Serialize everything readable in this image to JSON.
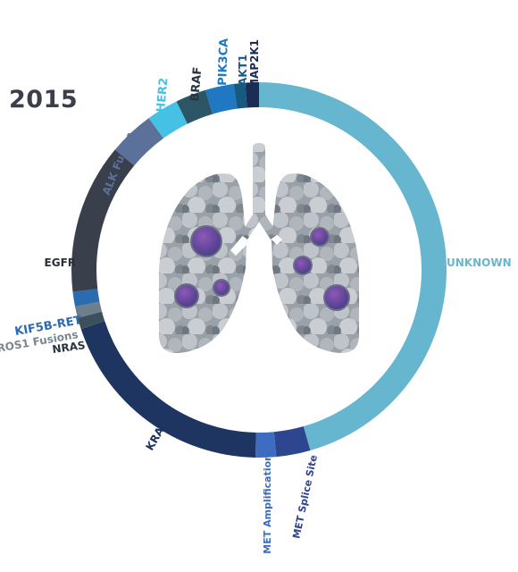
{
  "chart_data": {
    "type": "pie",
    "title": "2015",
    "segments": [
      {
        "name": "UNKNOWN",
        "value": 46.5,
        "color": "#66b6cf",
        "label_color": "#66b6cf"
      },
      {
        "name": "MET Splice Site",
        "value": 3.0,
        "color": "#2e4690",
        "label_color": "#2e4690"
      },
      {
        "name": "MET Amplification",
        "value": 1.8,
        "color": "#3d6cc0",
        "label_color": "#3d6cc0"
      },
      {
        "name": "KRAS",
        "value": 20.0,
        "color": "#1e3461",
        "label_color": "#1e3461"
      },
      {
        "name": "NRAS",
        "value": 1.0,
        "color": "#3c4f5c",
        "label_color": "#2a3440"
      },
      {
        "name": "ROS1 Fusions",
        "value": 1.0,
        "color": "#6e7f8c",
        "label_color": "#7a8590"
      },
      {
        "name": "KIF5B-RET",
        "value": 1.3,
        "color": "#2b6cb0",
        "label_color": "#2b6cb0"
      },
      {
        "name": "EGFR",
        "value": 13.2,
        "color": "#3a3f4c",
        "label_color": "#2a2e36"
      },
      {
        "name": "ALK Fusion",
        "value": 4.0,
        "color": "#5c719a",
        "label_color": "#5c719a"
      },
      {
        "name": "HER2",
        "value": 2.8,
        "color": "#45c1e6",
        "label_color": "#45c1e6"
      },
      {
        "name": "BRAF",
        "value": 2.7,
        "color": "#2c5566",
        "label_color": "#2a3440"
      },
      {
        "name": "PIK3CA",
        "value": 2.5,
        "color": "#1f78c1",
        "label_color": "#1f78c1"
      },
      {
        "name": "AKT1",
        "value": 1.0,
        "color": "#165a82",
        "label_color": "#165a82"
      },
      {
        "name": "MAP2K1",
        "value": 1.2,
        "color": "#1b2d55",
        "label_color": "#1b2d55"
      }
    ]
  }
}
